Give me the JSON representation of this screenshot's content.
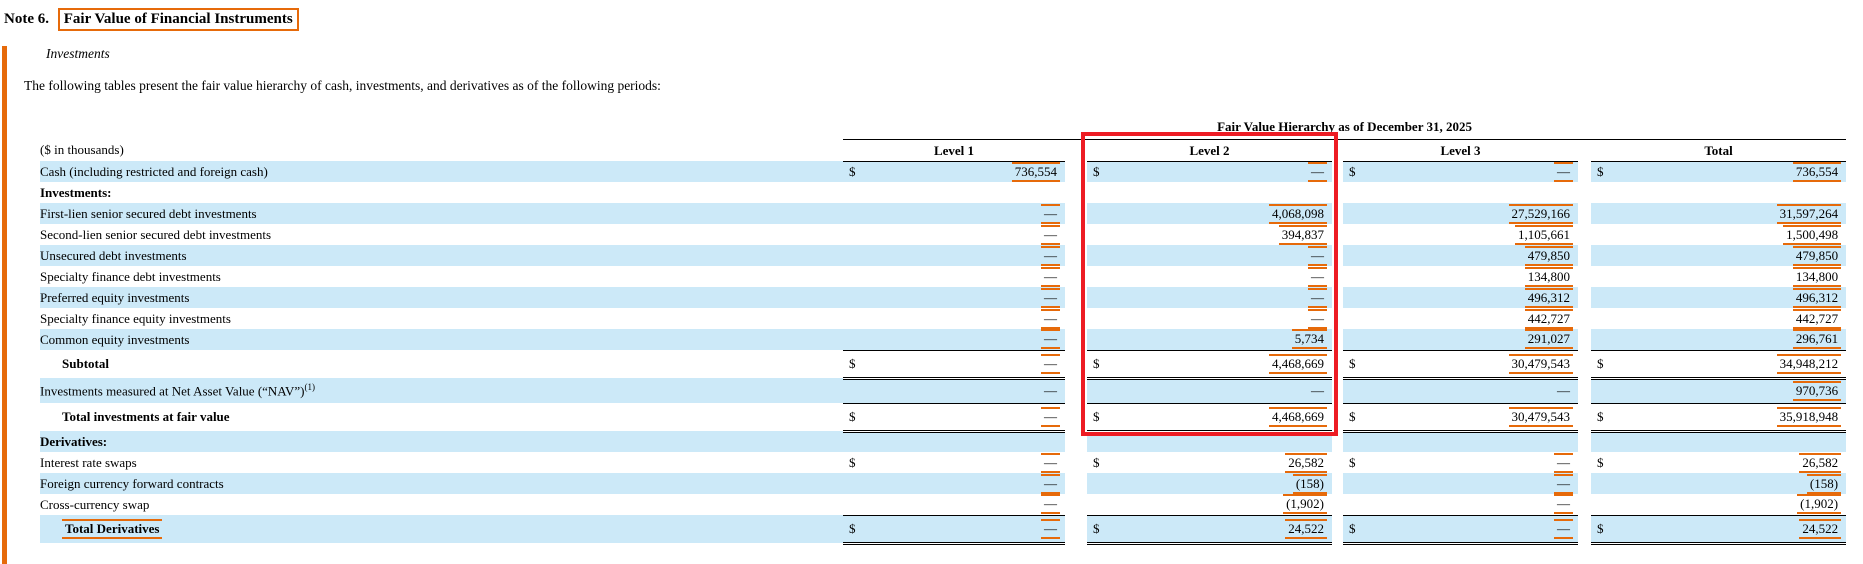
{
  "note": {
    "prefix": "Note 6.",
    "title": "Fair Value of Financial Instruments"
  },
  "section_heading": "Investments",
  "intro": "The following tables present the fair value hierarchy of cash, investments, and derivatives as of the following periods:",
  "table": {
    "title": "Fair Value Hierarchy as of December 31, 2025",
    "unit_label": "($ in thousands)",
    "currency_symbol": "$",
    "columns": [
      "Level 1",
      "Level 2",
      "Level 3",
      "Total"
    ],
    "rows": [
      {
        "label": "Cash (including restricted and foreign cash)",
        "shaded": true,
        "dollar": true,
        "values": [
          "736,554",
          "—",
          "—",
          "736,554"
        ],
        "marks": [
          true,
          true,
          true,
          true
        ]
      },
      {
        "label": "Investments:",
        "bold": true,
        "shaded": false,
        "values": [
          "",
          "",
          "",
          ""
        ],
        "marks": [
          false,
          false,
          false,
          false
        ]
      },
      {
        "label": "First-lien senior secured debt investments",
        "shaded": true,
        "values": [
          "—",
          "4,068,098",
          "27,529,166",
          "31,597,264"
        ],
        "marks": [
          true,
          true,
          true,
          true
        ]
      },
      {
        "label": "Second-lien senior secured debt investments",
        "shaded": false,
        "values": [
          "—",
          "394,837",
          "1,105,661",
          "1,500,498"
        ],
        "marks": [
          true,
          true,
          true,
          true
        ]
      },
      {
        "label": "Unsecured debt investments",
        "shaded": true,
        "values": [
          "—",
          "—",
          "479,850",
          "479,850"
        ],
        "marks": [
          true,
          true,
          true,
          true
        ]
      },
      {
        "label": "Specialty finance debt investments",
        "shaded": false,
        "values": [
          "—",
          "—",
          "134,800",
          "134,800"
        ],
        "marks": [
          true,
          true,
          true,
          true
        ]
      },
      {
        "label": "Preferred equity investments",
        "shaded": true,
        "values": [
          "—",
          "—",
          "496,312",
          "496,312"
        ],
        "marks": [
          true,
          true,
          true,
          true
        ]
      },
      {
        "label": "Specialty finance equity investments",
        "shaded": false,
        "values": [
          "—",
          "—",
          "442,727",
          "442,727"
        ],
        "marks": [
          true,
          true,
          true,
          true
        ]
      },
      {
        "label": "Common equity investments",
        "shaded": true,
        "values": [
          "—",
          "5,734",
          "291,027",
          "296,761"
        ],
        "marks": [
          true,
          true,
          true,
          true
        ]
      },
      {
        "label": "Subtotal",
        "bold": true,
        "indent": true,
        "shaded": false,
        "dollar": true,
        "rules": "topdouble",
        "values": [
          "—",
          "4,468,669",
          "30,479,543",
          "34,948,212"
        ],
        "marks": [
          true,
          true,
          true,
          true
        ]
      },
      {
        "label": "Investments measured at Net Asset Value (“NAV”)",
        "sup": "(1)",
        "shaded": true,
        "rules": "bottomsingle",
        "values": [
          "—",
          "—",
          "—",
          "970,736"
        ],
        "marks": [
          false,
          false,
          false,
          true
        ]
      },
      {
        "label": "Total investments at fair value",
        "bold": true,
        "indent": true,
        "shaded": false,
        "dollar": true,
        "rules": "double",
        "values": [
          "—",
          "4,468,669",
          "30,479,543",
          "35,918,948"
        ],
        "marks": [
          true,
          true,
          true,
          true
        ]
      },
      {
        "label": "Derivatives:",
        "bold": true,
        "shaded": true,
        "values": [
          "",
          "",
          "",
          ""
        ],
        "marks": [
          false,
          false,
          false,
          false
        ]
      },
      {
        "label": "Interest rate swaps",
        "shaded": false,
        "dollar": true,
        "values": [
          "—",
          "26,582",
          "—",
          "26,582"
        ],
        "marks": [
          true,
          true,
          true,
          true
        ]
      },
      {
        "label": "Foreign currency forward contracts",
        "shaded": true,
        "values": [
          "—",
          "(158)",
          "—",
          "(158)"
        ],
        "marks": [
          true,
          true,
          true,
          true
        ]
      },
      {
        "label": "Cross-currency swap",
        "shaded": false,
        "values": [
          "—",
          "(1,902)",
          "—",
          "(1,902)"
        ],
        "marks": [
          true,
          true,
          true,
          true
        ]
      },
      {
        "label": "Total Derivatives",
        "bold": true,
        "indent": true,
        "shaded": true,
        "dollar": true,
        "rules": "topdouble",
        "label_marked": true,
        "values": [
          "—",
          "24,522",
          "—",
          "24,522"
        ],
        "marks": [
          true,
          true,
          true,
          true
        ]
      }
    ]
  },
  "annotations": {
    "highlight_box_color": "#ed1c24",
    "mark_color": "#e66a0a",
    "row_stripe_color": "#cce9f8",
    "highlighted_column": "Level 2"
  }
}
